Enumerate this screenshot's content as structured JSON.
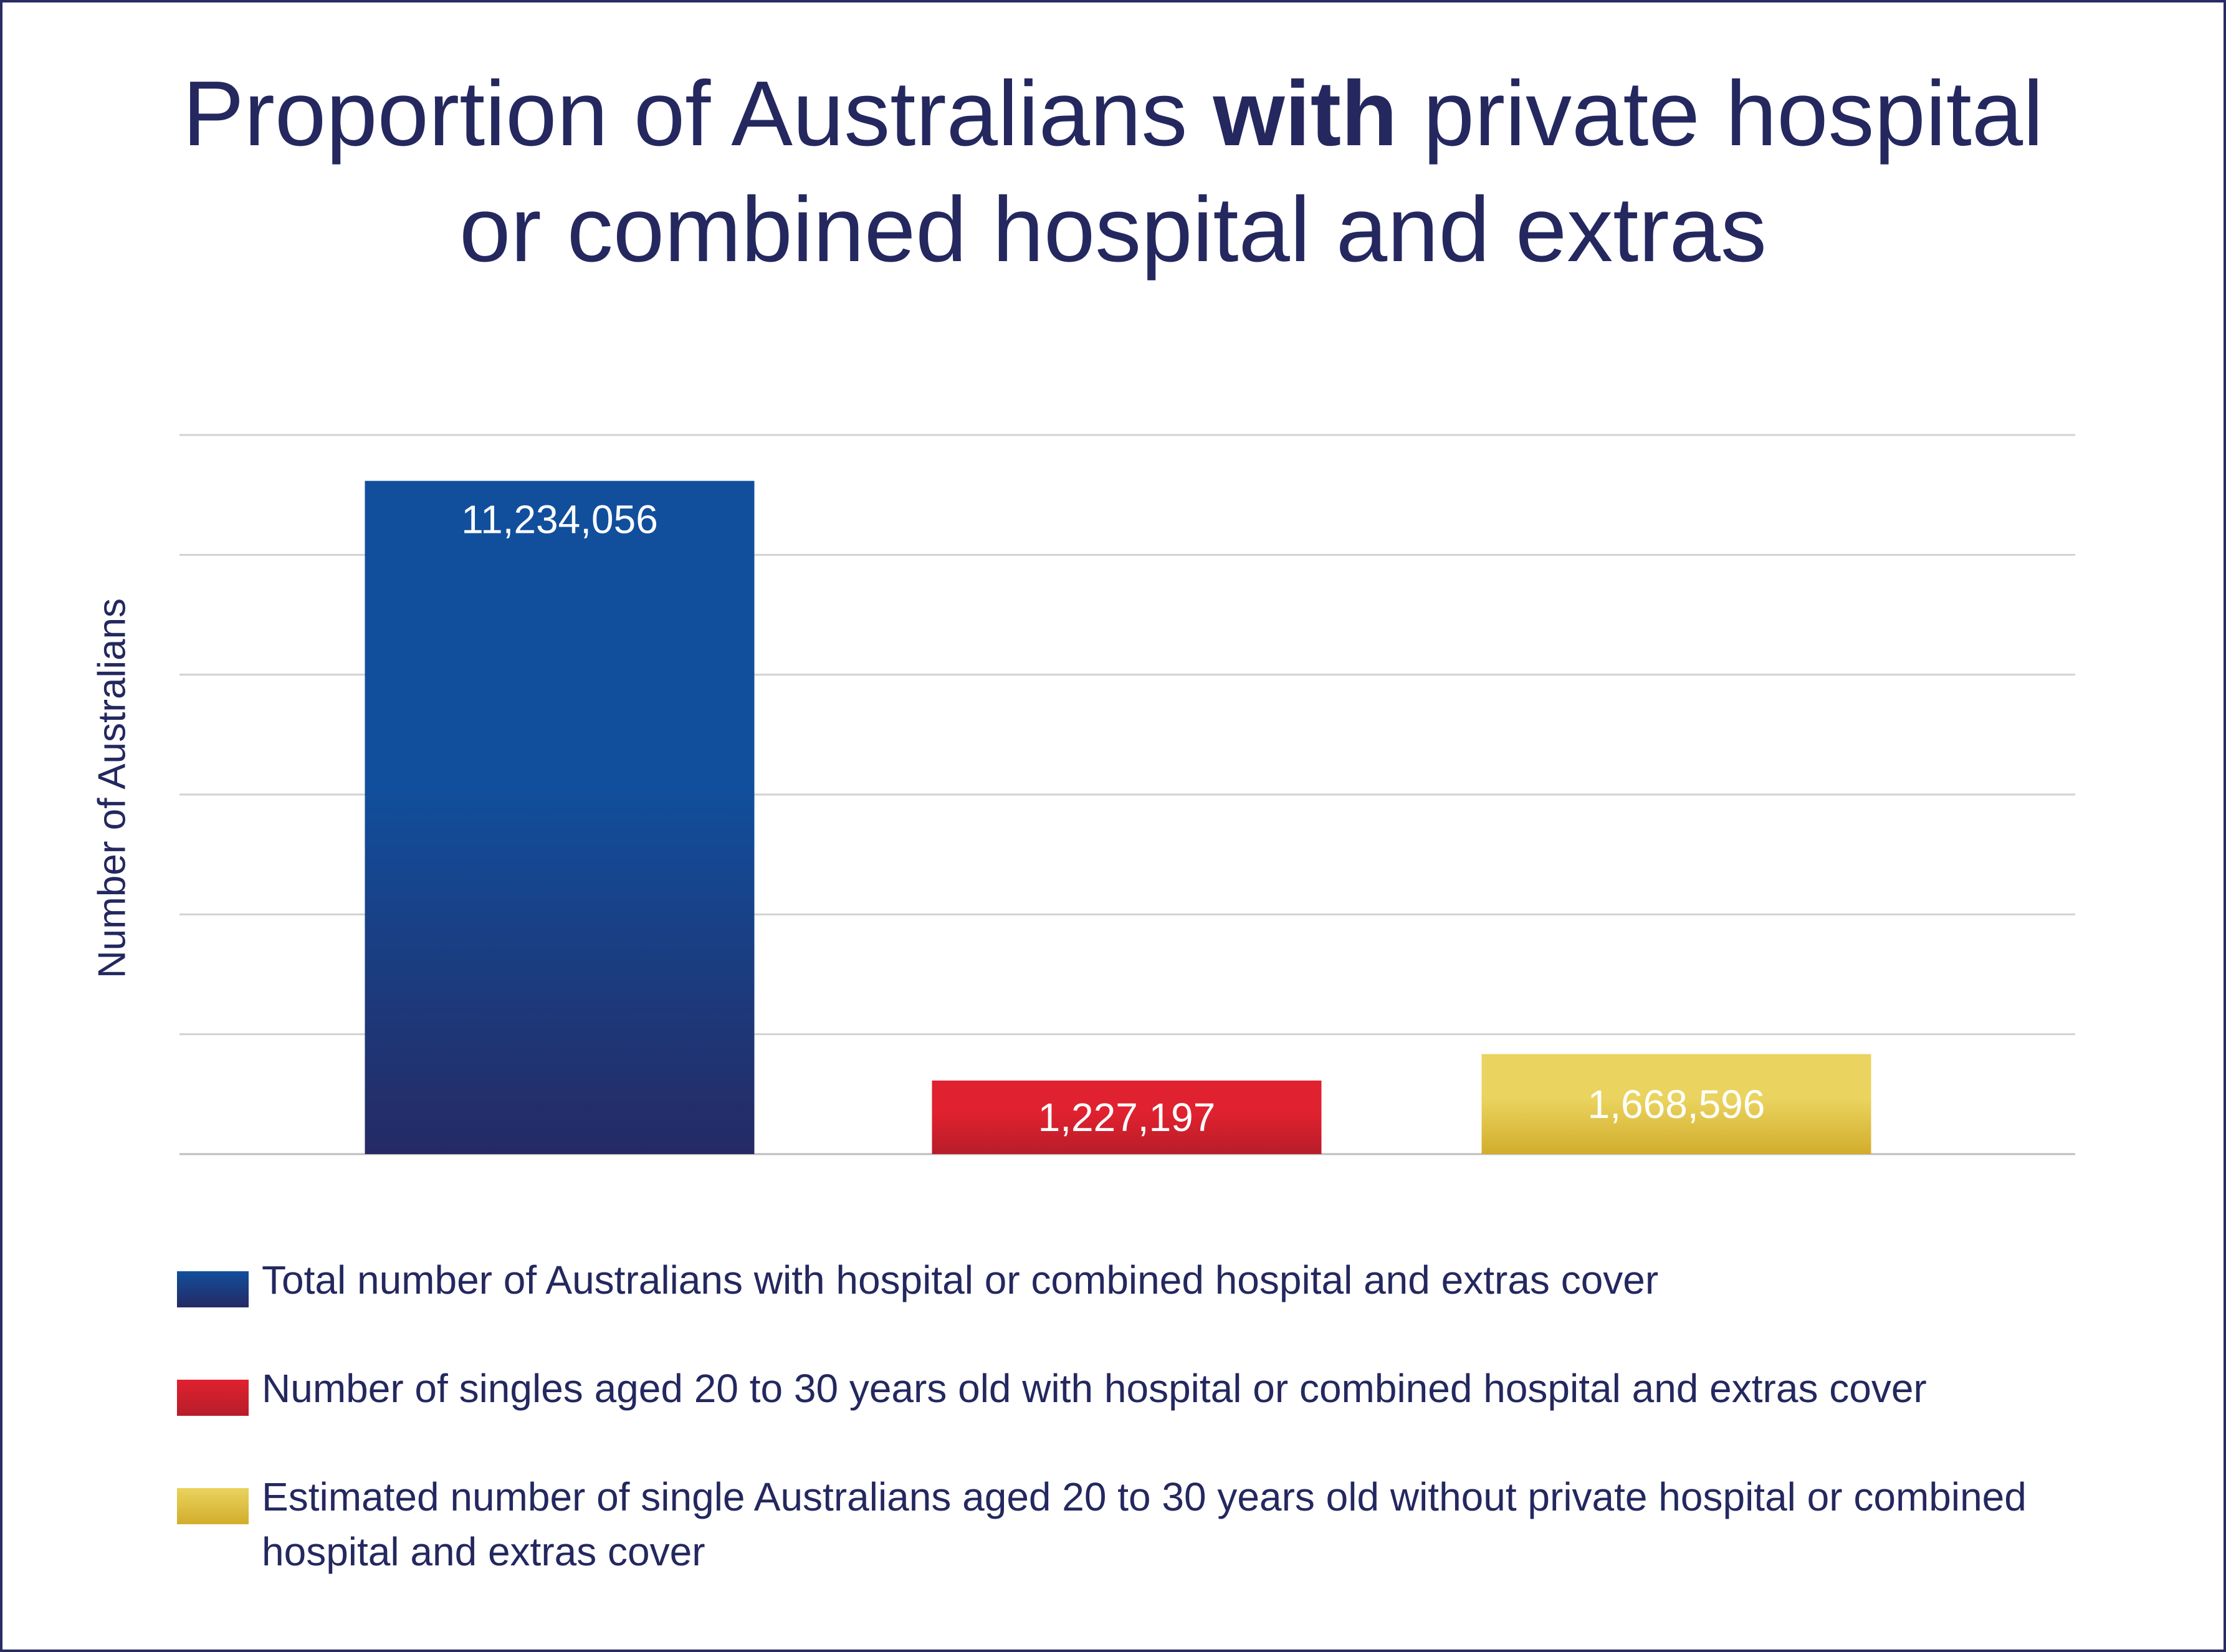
{
  "chart_data": {
    "type": "bar",
    "title_parts": [
      {
        "text": "Proportion of Australians ",
        "bold": false
      },
      {
        "text": "with",
        "bold": true
      },
      {
        "text": " private hospital",
        "bold": false
      },
      {
        "text": "or combined hospital and extras",
        "bold": false,
        "newline": true
      }
    ],
    "ylabel": "Number of Australians",
    "ylim": [
      0,
      12000000
    ],
    "gridlines": true,
    "legend_position": "bottom",
    "series": [
      {
        "name": "Total number of Australians with hospital or combined hospital and extras cover",
        "value": 11234056,
        "label": "11,234,056",
        "color_top": "#114f9c",
        "color_bottom": "#252a64"
      },
      {
        "name": "Number of singles aged 20 to 30 years old with hospital or combined hospital and extras cover",
        "value": 1227197,
        "label": "1,227,197",
        "color_top": "#e0212f",
        "color_bottom": "#b71d2a"
      },
      {
        "name": "Estimated number of single Australians aged 20 to 30 years old without private hospital or combined hospital and extras cover",
        "value": 1668596,
        "label": "1,668,596",
        "color_top": "#ead35e",
        "color_bottom": "#d2ad2c"
      }
    ]
  }
}
